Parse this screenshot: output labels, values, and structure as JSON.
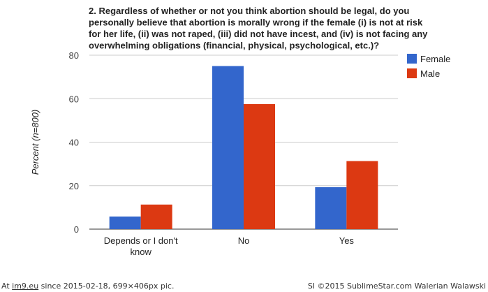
{
  "chart_data": {
    "type": "bar",
    "title_lines": [
      "2. Regardless of whether or not you think abortion should be legal, do you",
      "personally believe that abortion is morally wrong if the female (i) is not at risk",
      "for her life, (ii) was not raped, (iii) did not have incest, and (iv) is not facing any",
      "overwhelming obligations (financial, physical, psychological, etc.)?"
    ],
    "ylabel": "Percent (n=800)",
    "xlabel": "",
    "ylim": [
      0,
      80
    ],
    "yticks": [
      0,
      20,
      40,
      60,
      80
    ],
    "categories": [
      [
        "Depends or I don't",
        "know"
      ],
      [
        "No"
      ],
      [
        "Yes"
      ]
    ],
    "series": [
      {
        "name": "Female",
        "color": "#3366cc",
        "values": [
          5.8,
          75,
          19.3
        ]
      },
      {
        "name": "Male",
        "color": "#dc3912",
        "values": [
          11.3,
          57.5,
          31.3
        ]
      }
    ],
    "legend_position": "right",
    "grid": true
  },
  "footer": {
    "left_prefix": "At ",
    "left_link": "im9.eu",
    "left_suffix": " since 2015-02-18, 699×406px pic.",
    "right": "SI ©2015 SublimeStar.com Walerian Walawski"
  }
}
